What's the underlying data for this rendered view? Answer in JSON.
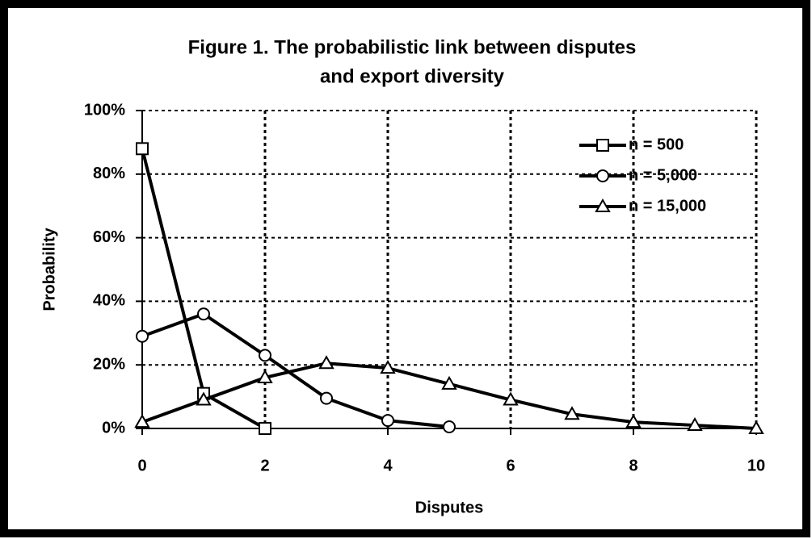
{
  "chart_data": {
    "type": "line",
    "title": [
      "Figure 1.  The probabilistic link between disputes",
      "and export diversity"
    ],
    "x_label": "Disputes",
    "y_label": "Probability",
    "x": [
      0,
      1,
      2,
      3,
      4,
      5,
      6,
      7,
      8,
      9,
      10
    ],
    "series": [
      {
        "name": "n = 500",
        "color": "#000000",
        "marker": "square",
        "values": [
          88,
          11,
          0,
          null,
          null,
          null,
          null,
          null,
          null,
          null,
          null
        ]
      },
      {
        "name": "n = 5,000",
        "color": "#000000",
        "marker": "circle",
        "values": [
          29,
          36,
          23,
          9.5,
          2.5,
          0.5,
          null,
          null,
          null,
          null,
          null
        ]
      },
      {
        "name": "n = 15,000",
        "color": "#000000",
        "marker": "triangle",
        "values": [
          2,
          9,
          16,
          20.5,
          19,
          14,
          9,
          4.5,
          2,
          1,
          0
        ]
      }
    ],
    "xlim": [
      0,
      10
    ],
    "xticks": [
      0,
      2,
      4,
      6,
      8,
      10
    ],
    "ylim": [
      0,
      100
    ],
    "yticks": [
      {
        "value": 0,
        "label": "0%"
      },
      {
        "value": 20,
        "label": "20%"
      },
      {
        "value": 40,
        "label": "40%"
      },
      {
        "value": 60,
        "label": "60%"
      },
      {
        "value": 80,
        "label": "80%"
      },
      {
        "value": 100,
        "label": "100%"
      }
    ],
    "grid": true,
    "legend": "upper right"
  }
}
